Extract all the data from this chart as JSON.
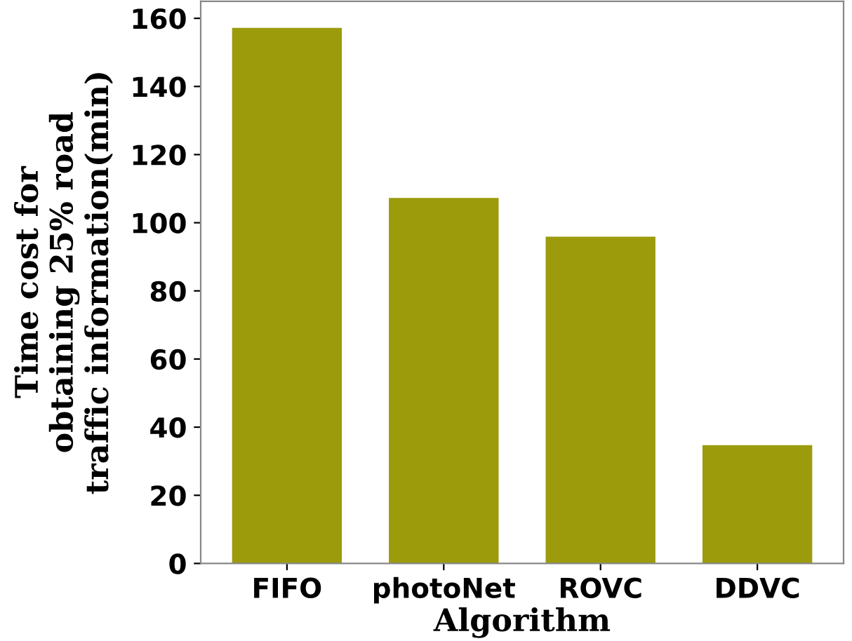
{
  "chart_data": {
    "type": "bar",
    "xlabel": "Algorithm",
    "ylabel": "Time cost for\nobtaining 25% road\ntraffic information(min)",
    "categories": [
      "FIFO",
      "photoNet",
      "ROVC",
      "DDVC"
    ],
    "values": [
      157.2,
      107.3,
      95.9,
      34.7
    ],
    "color": "#9b9b0c",
    "ylim": [
      0,
      165
    ],
    "yticks": [
      0,
      20,
      40,
      60,
      80,
      100,
      120,
      140,
      160
    ],
    "grid": false
  }
}
